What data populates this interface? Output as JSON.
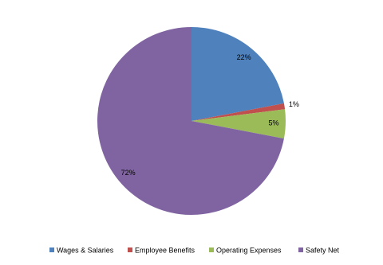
{
  "chart_data": {
    "type": "pie",
    "categories": [
      "Wages & Salaries",
      "Employee Benefits",
      "Operating Expenses",
      "Safety Net"
    ],
    "values": [
      22,
      1,
      5,
      72
    ],
    "value_labels": [
      "22%",
      "1%",
      "5%",
      "72%"
    ],
    "colors": [
      "#4f81bd",
      "#c0504d",
      "#9bbb59",
      "#8064a2"
    ],
    "legend": "bottom"
  }
}
